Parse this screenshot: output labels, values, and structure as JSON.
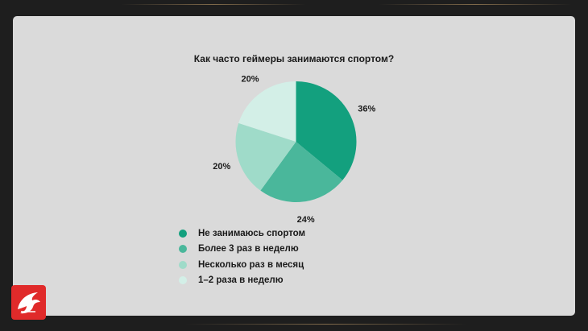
{
  "chart_data": {
    "type": "pie",
    "title": "Как часто геймеры занимаются спортом?",
    "categories": [
      "Не занимаюсь спортом",
      "Более 3 раз в неделю",
      "Несколько раз в месяц",
      "1–2 раза в неделю"
    ],
    "values": [
      36,
      24,
      20,
      20
    ],
    "value_labels": [
      "36%",
      "24%",
      "20%",
      "20%"
    ],
    "colors": [
      "#13a07e",
      "#4ab79b",
      "#9fdbc9",
      "#d3efe7"
    ],
    "legend_position": "bottom-left"
  },
  "logo": {
    "icon": "dragon-logo-icon",
    "color": "#e02a2a"
  }
}
